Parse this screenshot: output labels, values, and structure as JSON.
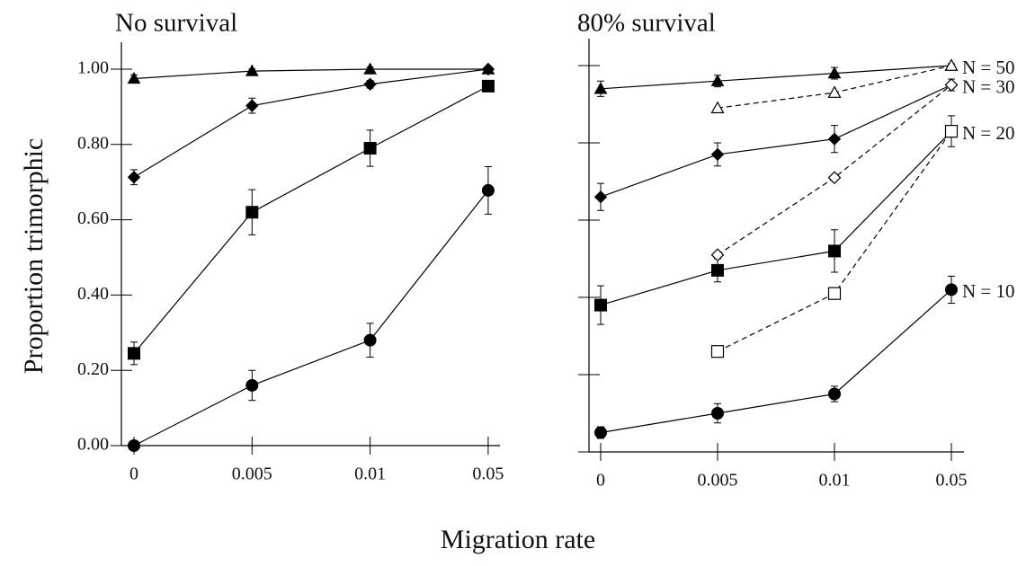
{
  "y_label": "Proportion trimorphic",
  "x_label": "Migration rate",
  "chart_data": [
    {
      "type": "line",
      "title": "No survival",
      "categories": [
        "0",
        "0.005",
        "0.01",
        "0.05"
      ],
      "ylim": [
        0,
        1
      ],
      "yticks": [
        {
          "value": 0,
          "label": "0.00"
        },
        {
          "value": 0.2,
          "label": "0.20"
        },
        {
          "value": 0.4,
          "label": "0.40"
        },
        {
          "value": 0.6,
          "label": "0.60"
        },
        {
          "value": 0.8,
          "label": "0.80"
        },
        {
          "value": 1,
          "label": "1.00"
        }
      ],
      "y_tick_labels": true,
      "series": [
        {
          "marker": "triangle",
          "filled": true,
          "dashed": false,
          "color": "#000000",
          "values": [
            0.975,
            0.995,
            1.0,
            1.0
          ],
          "errors": [
            0.01,
            0.005,
            0.005,
            0.005
          ]
        },
        {
          "marker": "diamond",
          "filled": true,
          "dashed": false,
          "color": "#000000",
          "values": [
            0.713,
            0.903,
            0.96,
            1.0
          ],
          "errors": [
            0.02,
            0.02,
            0.01,
            0.005
          ]
        },
        {
          "marker": "square",
          "filled": true,
          "dashed": false,
          "color": "#000000",
          "values": [
            0.245,
            0.62,
            0.79,
            0.955
          ],
          "errors": [
            0.03,
            0.06,
            0.048,
            0.01
          ]
        },
        {
          "marker": "circle",
          "filled": true,
          "dashed": false,
          "color": "#000000",
          "values": [
            0.0,
            0.16,
            0.28,
            0.678
          ],
          "errors": [
            0.0,
            0.04,
            0.045,
            0.063
          ]
        }
      ]
    },
    {
      "type": "line",
      "title": "80% survival",
      "categories": [
        "0",
        "0.005",
        "0.01",
        "0.05"
      ],
      "ylim": [
        0,
        1
      ],
      "yticks": [
        0,
        0.2,
        0.4,
        0.6,
        0.8,
        1
      ],
      "y_tick_labels": false,
      "series": [
        {
          "name": "N = 50",
          "marker": "triangle",
          "filled": true,
          "dashed": false,
          "color": "#000000",
          "values": [
            0.94,
            0.96,
            0.98,
            1.0
          ],
          "errors": [
            0.02,
            0.015,
            0.015,
            0.005
          ]
        },
        {
          "name": "N = 30",
          "marker": "diamond",
          "filled": true,
          "dashed": false,
          "color": "#000000",
          "values": [
            0.66,
            0.77,
            0.81,
            0.95
          ],
          "errors": [
            0.035,
            0.03,
            0.035,
            0.015
          ]
        },
        {
          "name": "N = 20",
          "marker": "square",
          "filled": true,
          "dashed": false,
          "color": "#000000",
          "values": [
            0.38,
            0.47,
            0.52,
            0.83
          ],
          "errors": [
            0.05,
            0.03,
            0.055,
            0.04
          ]
        },
        {
          "name": "N = 10",
          "marker": "circle",
          "filled": true,
          "dashed": false,
          "color": "#000000",
          "values": [
            0.05,
            0.1,
            0.15,
            0.42
          ],
          "errors": [
            0.015,
            0.025,
            0.02,
            0.035
          ]
        },
        {
          "marker": "triangle",
          "filled": false,
          "dashed": true,
          "color": "#000000",
          "values": [
            null,
            0.89,
            0.93,
            1.0
          ],
          "errors": [
            null,
            null,
            null,
            null
          ]
        },
        {
          "marker": "diamond",
          "filled": false,
          "dashed": true,
          "color": "#000000",
          "values": [
            null,
            0.51,
            0.71,
            0.95
          ],
          "errors": [
            null,
            null,
            null,
            null
          ]
        },
        {
          "marker": "square",
          "filled": false,
          "dashed": true,
          "color": "#000000",
          "values": [
            null,
            0.26,
            0.41,
            0.83
          ],
          "errors": [
            null,
            null,
            null,
            null
          ]
        }
      ]
    }
  ]
}
